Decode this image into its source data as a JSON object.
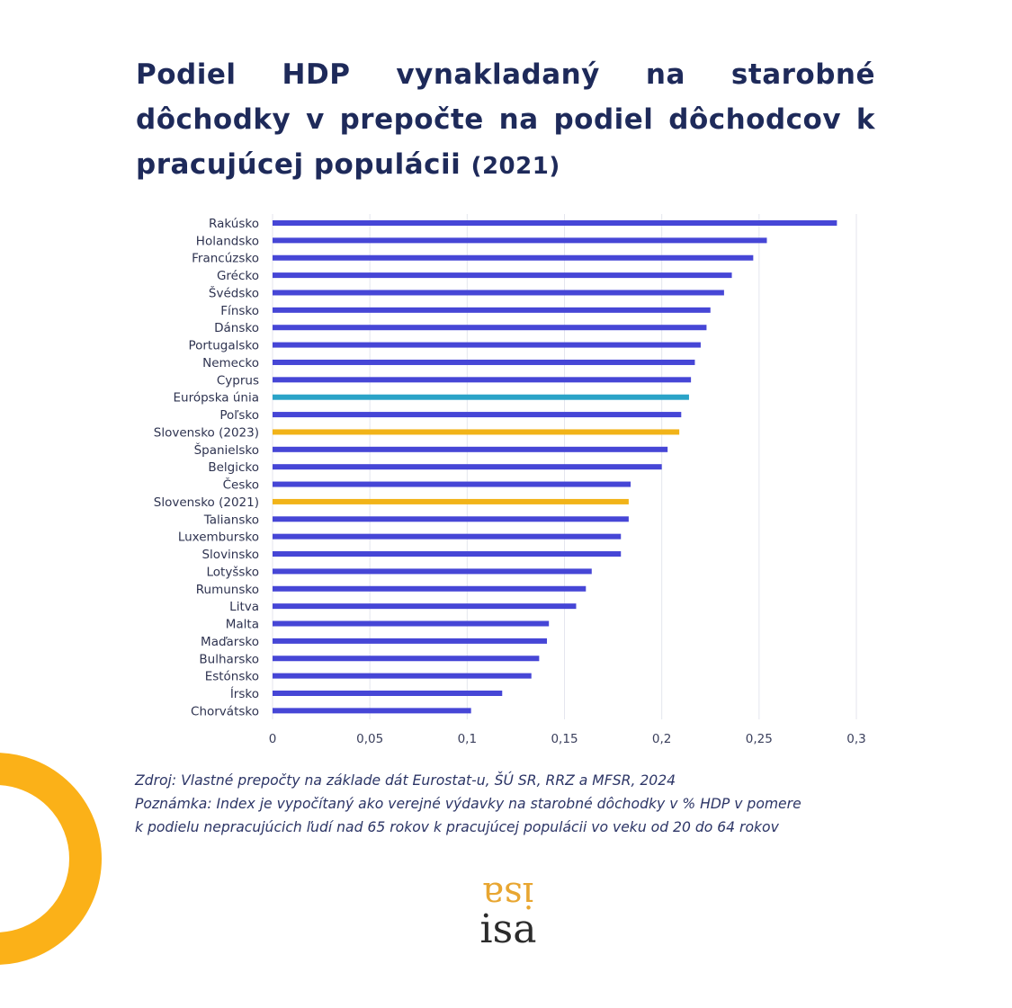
{
  "title": {
    "main": "Podiel HDP vynakladaný na starobné dôchodky v prepočte na podiel dôchodcov k pracujúcej populácii",
    "year": "(2021)"
  },
  "colors": {
    "title": "#1e2a5a",
    "bar_default": "#4646d6",
    "bar_eu": "#2aa3c7",
    "bar_slovakia": "#f1b318",
    "ring": "#fbb118",
    "logo_accent": "#e8a631",
    "logo_text": "#2b2b2b"
  },
  "chart_data": {
    "type": "bar",
    "orientation": "horizontal",
    "title": "Podiel HDP vynakladaný na starobné dôchodky v prepočte na podiel dôchodcov k pracujúcej populácii (2021)",
    "xlabel": "",
    "ylabel": "",
    "xlim": [
      0,
      0.3
    ],
    "xticks": [
      0,
      0.05,
      0.1,
      0.15,
      0.2,
      0.25,
      0.3
    ],
    "xtick_labels": [
      "0",
      "0,05",
      "0,1",
      "0,15",
      "0,2",
      "0,25",
      "0,3"
    ],
    "grid": true,
    "categories": [
      "Rakúsko",
      "Holandsko",
      "Francúzsko",
      "Grécko",
      "Švédsko",
      "Fínsko",
      "Dánsko",
      "Portugalsko",
      "Nemecko",
      "Cyprus",
      "Európska únia",
      "Poľsko",
      "Slovensko (2023)",
      "Španielsko",
      "Belgicko",
      "Česko",
      "Slovensko (2021)",
      "Taliansko",
      "Luxembursko",
      "Slovinsko",
      "Lotyšsko",
      "Rumunsko",
      "Litva",
      "Malta",
      "Maďarsko",
      "Bulharsko",
      "Estónsko",
      "Írsko",
      "Chorvátsko"
    ],
    "values": [
      0.29,
      0.254,
      0.247,
      0.236,
      0.232,
      0.225,
      0.223,
      0.22,
      0.217,
      0.215,
      0.214,
      0.21,
      0.209,
      0.203,
      0.2,
      0.184,
      0.183,
      0.183,
      0.179,
      0.179,
      0.164,
      0.161,
      0.156,
      0.142,
      0.141,
      0.137,
      0.133,
      0.118,
      0.102
    ],
    "highlight": {
      "Európska únia": "eu",
      "Slovensko (2023)": "slovakia",
      "Slovensko (2021)": "slovakia"
    }
  },
  "notes": {
    "source": "Zdroj: Vlastné prepočty na základe dát Eurostat-u, ŠÚ SR, RRZ a MFSR, 2024",
    "note_line1": "Poznámka: Index je vypočítaný ako verejné výdavky na starobné dôchodky v % HDP v pomere",
    "note_line2": "k podielu nepracujúcich ľudí nad 65 rokov k pracujúcej populácii vo veku od 20 do 64 rokov"
  },
  "logo": {
    "mirrored_text": "isa",
    "text": "isa"
  }
}
